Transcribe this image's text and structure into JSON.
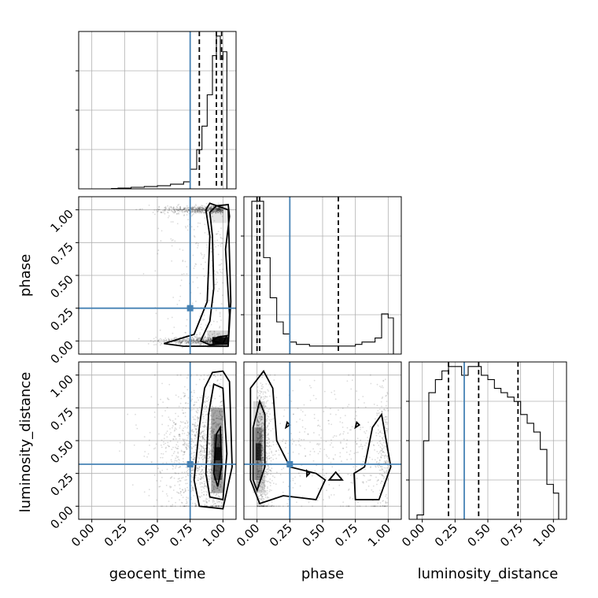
{
  "chart_data": {
    "type": "corner",
    "parameters": [
      "geocent_time",
      "phase",
      "luminosity_distance"
    ],
    "truths": {
      "geocent_time": 0.75,
      "phase": 0.25,
      "luminosity_distance": 0.32
    },
    "truth_color": "#4682b4",
    "axis_range": [
      -0.1,
      1.1
    ],
    "tick_labels": [
      "0.00",
      "0.25",
      "0.50",
      "0.75",
      "1.00"
    ],
    "tick_values": [
      0.0,
      0.25,
      0.5,
      0.75,
      1.0
    ],
    "grid": true,
    "histograms": [
      {
        "parameter": "geocent_time",
        "bin_edges": [
          0.15,
          0.2,
          0.3,
          0.4,
          0.5,
          0.6,
          0.7,
          0.75,
          0.8,
          0.84,
          0.88,
          0.92,
          0.95,
          0.98,
          1.0,
          1.03
        ],
        "counts": [
          0.5,
          1,
          2,
          3,
          4,
          6,
          9,
          25,
          50,
          80,
          120,
          170,
          195,
          165,
          175
        ],
        "quantile_lines": [
          0.82,
          0.95,
          0.99
        ]
      },
      {
        "parameter": "phase",
        "bin_edges": [
          -0.04,
          0.01,
          0.05,
          0.1,
          0.15,
          0.2,
          0.25,
          0.3,
          0.35,
          0.4,
          0.5,
          0.6,
          0.7,
          0.75,
          0.8,
          0.85,
          0.9,
          0.95,
          1.0,
          1.04
        ],
        "counts": [
          190,
          190,
          120,
          70,
          40,
          25,
          15,
          12,
          12,
          10,
          10,
          10,
          10,
          12,
          15,
          15,
          20,
          50,
          45
        ],
        "quantile_lines": [
          0.0,
          0.02,
          0.62
        ]
      },
      {
        "parameter": "luminosity_distance",
        "bin_edges": [
          -0.04,
          0.01,
          0.05,
          0.1,
          0.15,
          0.2,
          0.25,
          0.3,
          0.35,
          0.4,
          0.45,
          0.5,
          0.55,
          0.6,
          0.65,
          0.7,
          0.75,
          0.8,
          0.85,
          0.9,
          0.95,
          1.0,
          1.04
        ],
        "counts": [
          5,
          90,
          145,
          160,
          170,
          175,
          175,
          165,
          175,
          175,
          165,
          160,
          150,
          145,
          140,
          135,
          120,
          110,
          100,
          80,
          40,
          30
        ],
        "quantile_lines": [
          0.2,
          0.43,
          0.73
        ]
      }
    ],
    "pairs": [
      {
        "x": "geocent_time",
        "y": "phase"
      },
      {
        "x": "geocent_time",
        "y": "luminosity_distance"
      },
      {
        "x": "phase",
        "y": "luminosity_distance"
      }
    ]
  }
}
